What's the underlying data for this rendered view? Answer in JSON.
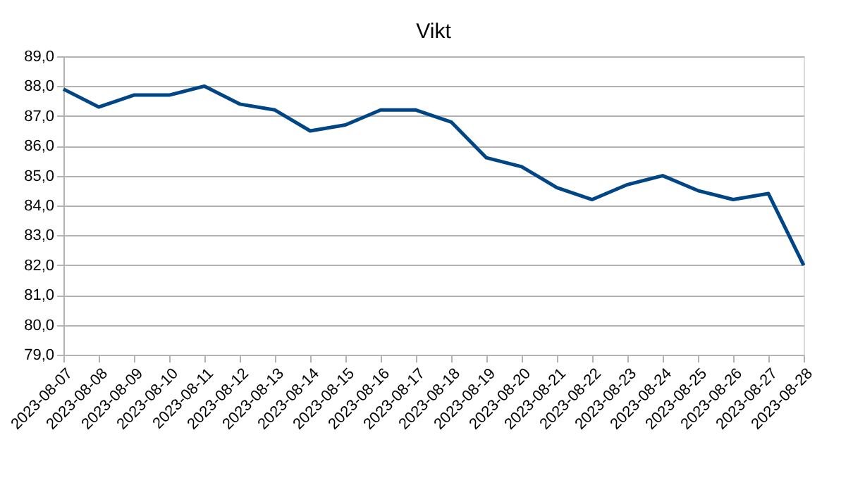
{
  "chart_data": {
    "type": "line",
    "title": "Vikt",
    "categories": [
      "2023-08-07",
      "2023-08-08",
      "2023-08-09",
      "2023-08-10",
      "2023-08-11",
      "2023-08-12",
      "2023-08-13",
      "2023-08-14",
      "2023-08-15",
      "2023-08-16",
      "2023-08-17",
      "2023-08-18",
      "2023-08-19",
      "2023-08-20",
      "2023-08-21",
      "2023-08-22",
      "2023-08-23",
      "2023-08-24",
      "2023-08-25",
      "2023-08-26",
      "2023-08-27",
      "2023-08-28"
    ],
    "series": [
      {
        "color": "#004586",
        "values": [
          87.9,
          87.3,
          87.7,
          87.7,
          88.0,
          87.4,
          87.2,
          86.5,
          86.7,
          87.2,
          87.2,
          86.8,
          85.6,
          85.3,
          84.6,
          84.2,
          84.7,
          85.0,
          84.5,
          84.2,
          84.4,
          82.0
        ]
      }
    ],
    "ylim": [
      79,
      89
    ],
    "yticks": [
      {
        "value": 79,
        "label": "79,0"
      },
      {
        "value": 80,
        "label": "80,0"
      },
      {
        "value": 81,
        "label": "81,0"
      },
      {
        "value": 82,
        "label": "82,0"
      },
      {
        "value": 83,
        "label": "83,0"
      },
      {
        "value": 84,
        "label": "84,0"
      },
      {
        "value": 85,
        "label": "85,0"
      },
      {
        "value": 86,
        "label": "86,0"
      },
      {
        "value": 87,
        "label": "87,0"
      },
      {
        "value": 88,
        "label": "88,0"
      },
      {
        "value": 89,
        "label": "89,0"
      }
    ],
    "grid": "y",
    "legend": false,
    "marker": "none",
    "line_style": "solid"
  }
}
